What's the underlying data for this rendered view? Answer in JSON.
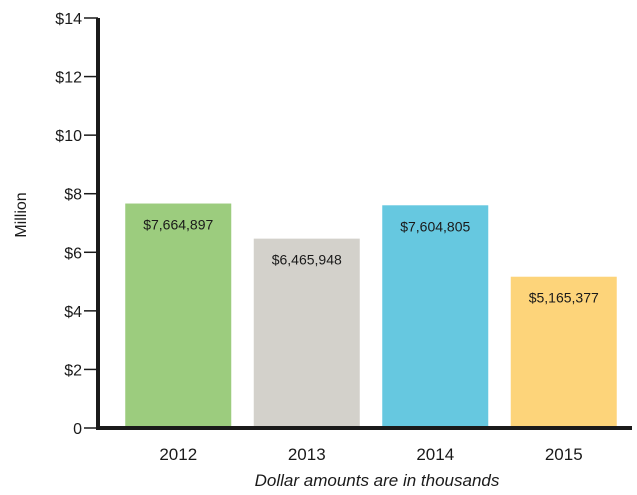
{
  "chart_data": {
    "type": "bar",
    "categories": [
      "2012",
      "2013",
      "2014",
      "2015"
    ],
    "values": [
      7.664897,
      6.465948,
      7.604805,
      5.165377
    ],
    "data_labels": [
      "$7,664,897",
      "$6,465,948",
      "$7,604,805",
      "$5,165,377"
    ],
    "colors": [
      "#9ccc7e",
      "#d3d1cb",
      "#66c8e0",
      "#fdd47a"
    ],
    "ylabel": "Million",
    "xlabel": "Dollar amounts are in thousands",
    "ylim": [
      0,
      14
    ],
    "yticks": [
      0,
      2,
      4,
      6,
      8,
      10,
      12,
      14
    ],
    "ytick_labels": [
      "0",
      "$2",
      "$4",
      "$6",
      "$8",
      "$10",
      "$12",
      "$14"
    ],
    "grid": false,
    "legend": "none"
  }
}
